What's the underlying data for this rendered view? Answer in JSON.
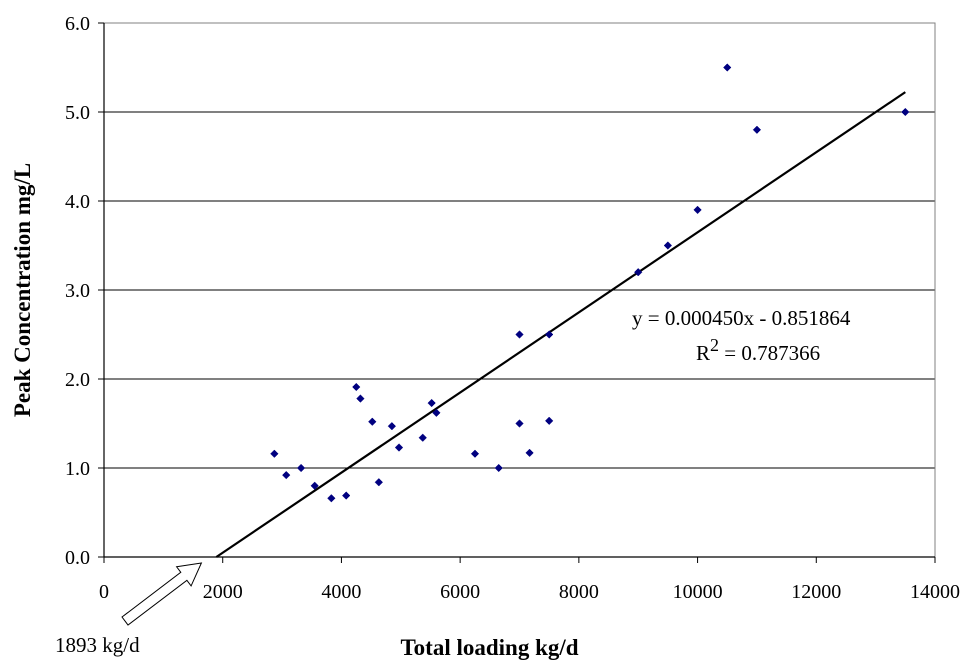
{
  "chart_data": {
    "type": "scatter",
    "xlabel": "Total loading kg/d",
    "ylabel": "Peak Concentration mg/L",
    "xlim": [
      0,
      14000
    ],
    "ylim": [
      0,
      6
    ],
    "x_ticks": [
      "0",
      "2000",
      "4000",
      "6000",
      "8000",
      "10000",
      "12000",
      "14000"
    ],
    "y_ticks": [
      "0.0",
      "1.0",
      "2.0",
      "3.0",
      "4.0",
      "5.0",
      "6.0"
    ],
    "grid": "horizontal",
    "marker_color": "#000080",
    "series": [
      {
        "points": [
          [
            2870,
            1.16
          ],
          [
            3070,
            0.92
          ],
          [
            3320,
            1.0
          ],
          [
            3550,
            0.8
          ],
          [
            3830,
            0.66
          ],
          [
            4080,
            0.69
          ],
          [
            4250,
            1.91
          ],
          [
            4320,
            1.78
          ],
          [
            4520,
            1.52
          ],
          [
            4630,
            0.84
          ],
          [
            4850,
            1.47
          ],
          [
            4970,
            1.23
          ],
          [
            5370,
            1.34
          ],
          [
            5520,
            1.73
          ],
          [
            5600,
            1.62
          ],
          [
            6250,
            1.16
          ],
          [
            6650,
            1.0
          ],
          [
            7000,
            2.5
          ],
          [
            7000,
            1.5
          ],
          [
            7170,
            1.17
          ],
          [
            7500,
            2.5
          ],
          [
            7500,
            1.53
          ],
          [
            9000,
            3.2
          ],
          [
            9500,
            3.5
          ],
          [
            10000,
            3.9
          ],
          [
            10500,
            5.5
          ],
          [
            11000,
            4.8
          ],
          [
            13500,
            5.0
          ]
        ]
      }
    ],
    "trendline": {
      "slope": 0.00045,
      "intercept": -0.851864,
      "x_start": 1893,
      "x_end": 13500,
      "equation_label": "y = 0.000450x - 0.851864",
      "r2_prefix": "R",
      "r2_sup": "2",
      "r2_suffix": " = 0.787366"
    },
    "annotation": {
      "text": "1893 kg/d",
      "x_value": 1893
    }
  }
}
